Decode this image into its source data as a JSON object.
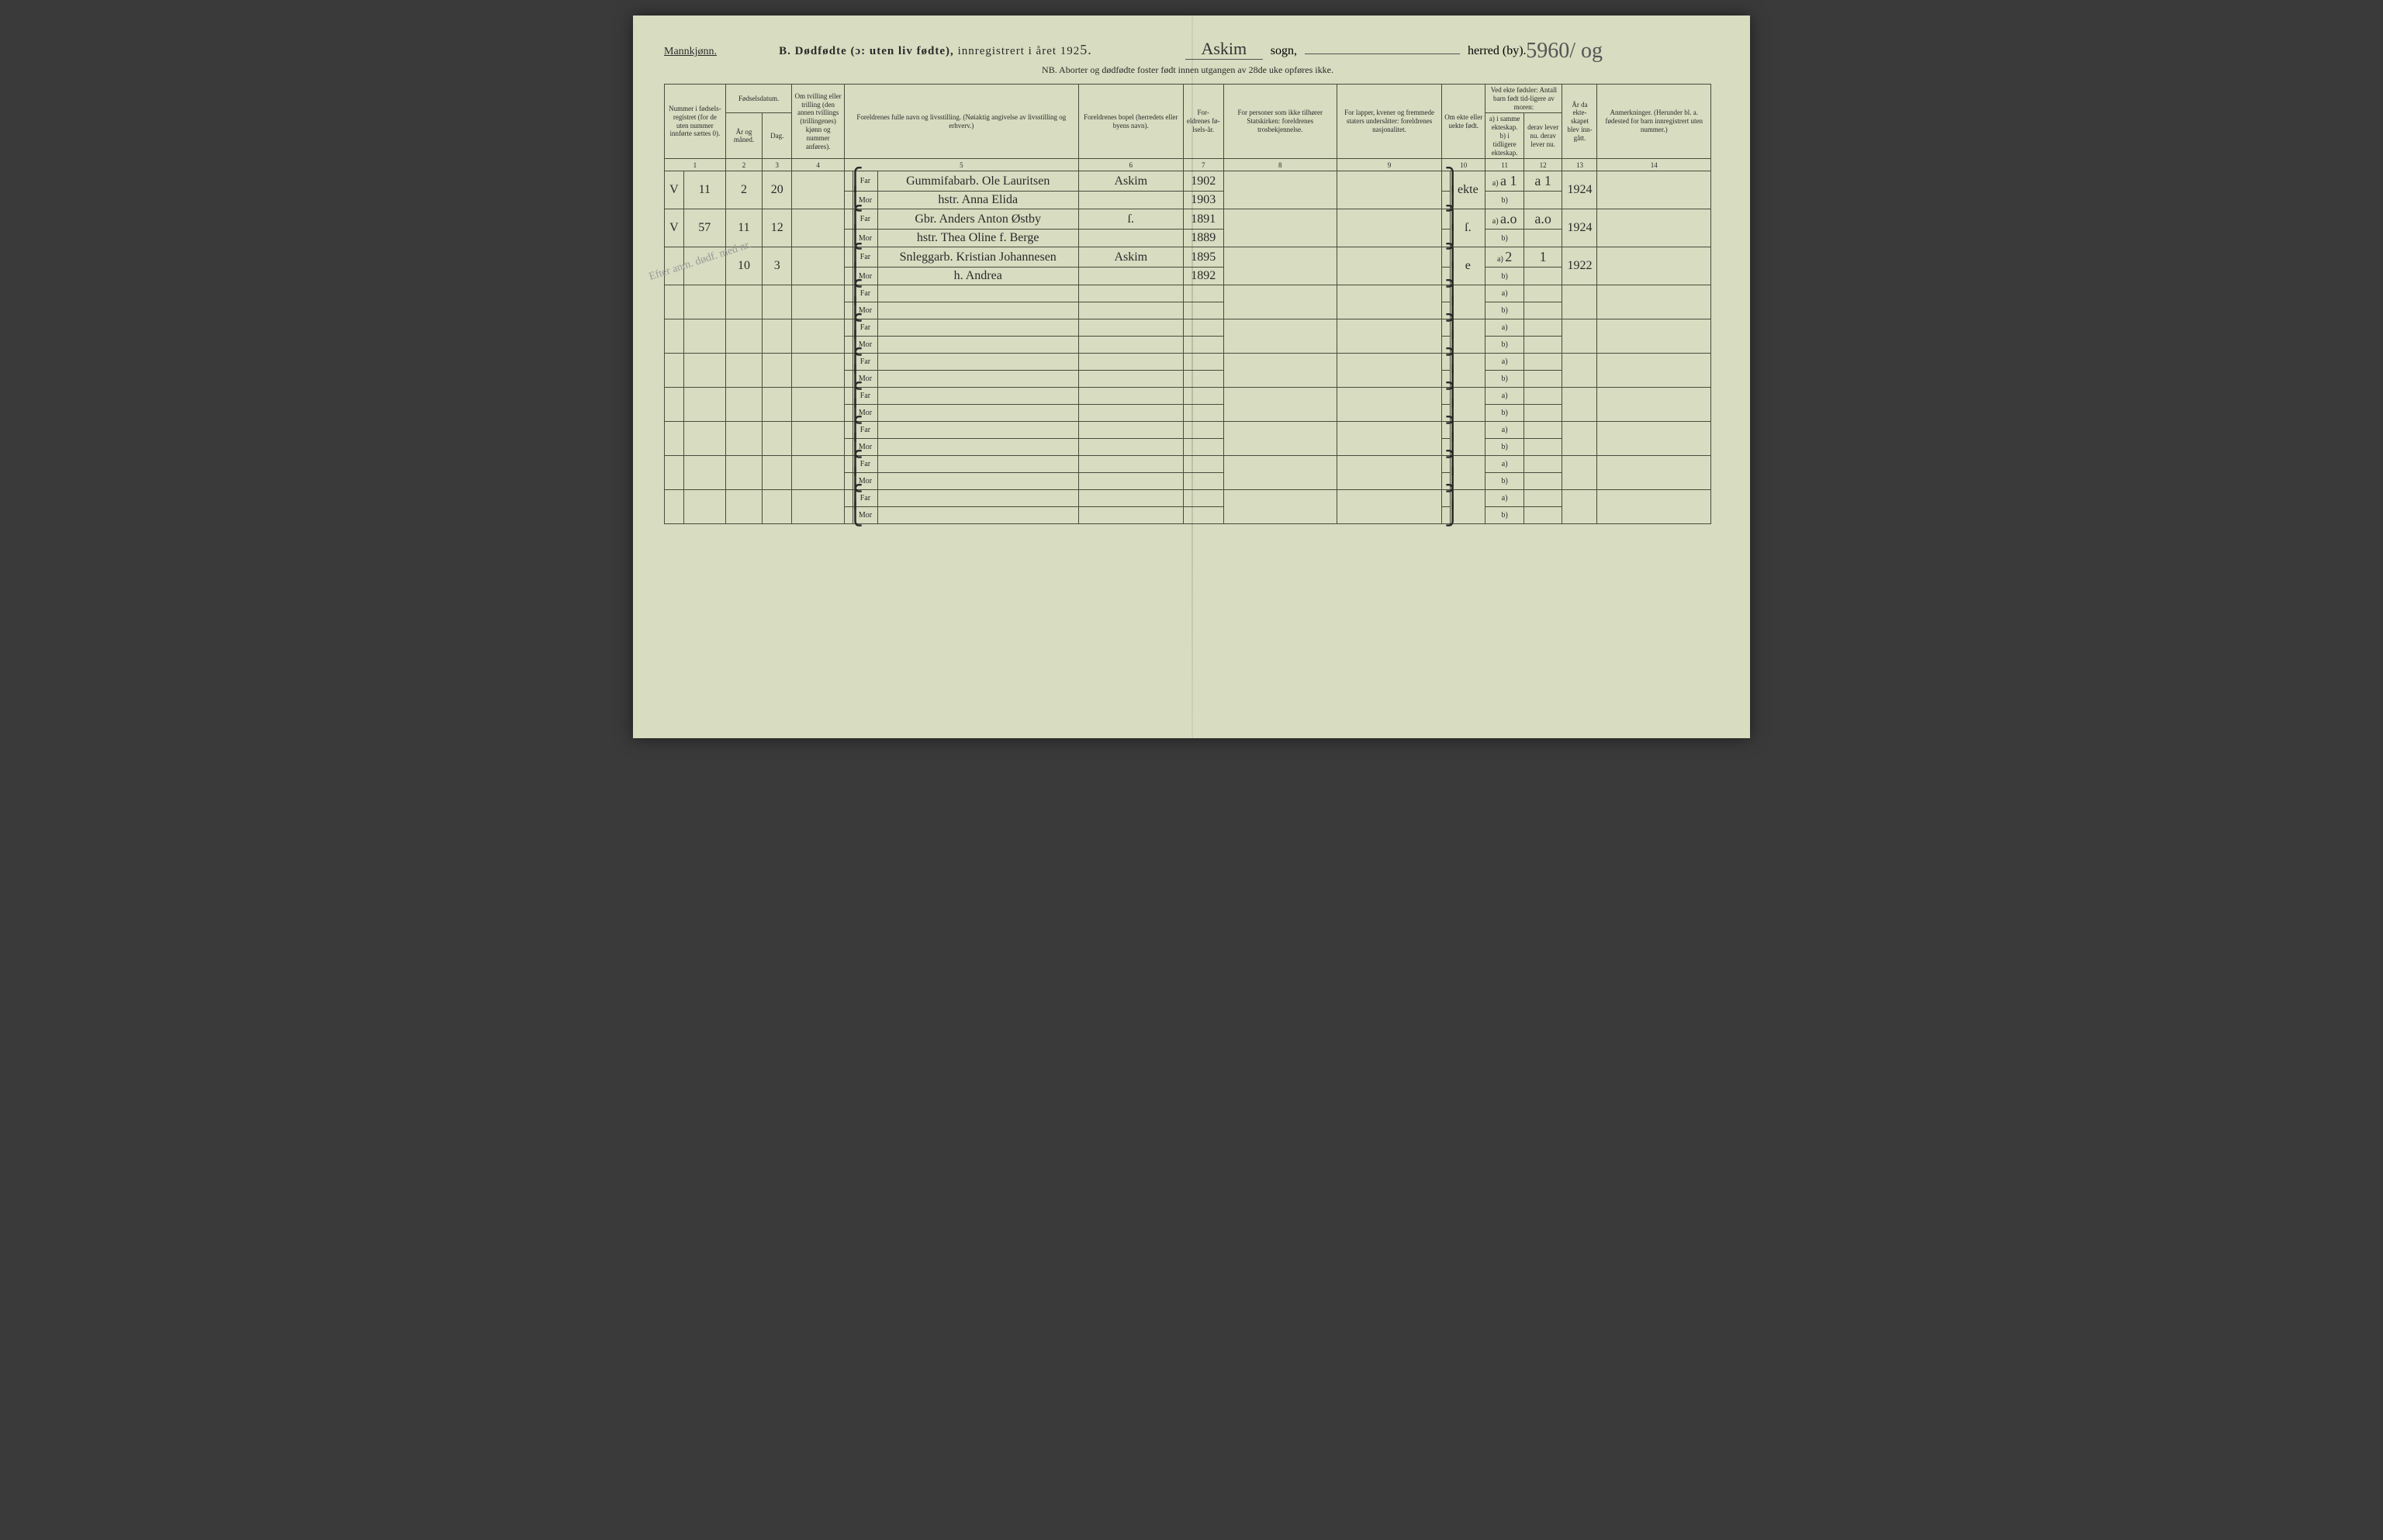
{
  "header": {
    "mannkjonn": "Mannkjønn.",
    "title_prefix": "B.",
    "title_main": "Dødfødte (ɔ: uten liv fødte),",
    "title_rest": "innregistrert i året 192",
    "year_suffix": "5.",
    "sogn_hw": "Askim",
    "sogn_label": "sogn,",
    "page_number": "5960/ og",
    "herred_label": "herred (by).",
    "nb_line": "NB. Aborter og dødfødte foster født innen utgangen av 28de uke opføres ikke."
  },
  "columns": {
    "c1": "Nummer i fødsels-registret (for de uten nummer innførte sættes 0).",
    "c2a": "Fødselsdatum.",
    "c2b": "År og måned.",
    "c3": "Dag.",
    "c4": "Om tvilling eller trilling (den annen tvillings (trillingenes) kjønn og nummer anføres).",
    "c5": "Foreldrenes fulle navn og livsstilling. (Nøiaktig angivelse av livsstilling og erhverv.)",
    "c6": "Foreldrenes bopel (herredets eller byens navn).",
    "c7": "For-eldrenes fø-lsels-år.",
    "c8": "For personer som ikke tilhører Statskirken: foreldrenes trosbekjennelse.",
    "c9": "For lapper, kvener og fremmede staters undersåtter: foreldrenes nasjonalitet.",
    "c10": "Om ekte eller uekte født.",
    "c11a": "Ved ekte fødsler: Antall barn født tid-ligere av moren:",
    "c11b": "a) i samme ekteskap. b) i tidligere ekteskap.",
    "c12": "derav lever nu. derav lever nu.",
    "c13": "År da ekte-skapet blev inn-gått.",
    "c14": "Anmerkninger. (Herunder bl. a. fødested for barn innregistrert uten nummer.)"
  },
  "colnums": [
    "1",
    "2",
    "3",
    "4",
    "5",
    "6",
    "7",
    "8",
    "9",
    "10",
    "11",
    "12",
    "13",
    "14"
  ],
  "far": "Far",
  "mor": "Mor",
  "a_label": "a)",
  "b_label": "b)",
  "brace_top": "⎧",
  "brace_bot": "⎩",
  "brace_r_top": "⎫",
  "brace_r_bot": "⎭",
  "margin_note": "Efter anm. dødf. med nr.",
  "rows": [
    {
      "check": "V",
      "num": "11",
      "month": "2",
      "day": "20",
      "far_name": "Gummifabarb. Ole Lauritsen",
      "mor_name": "hstr. Anna Elida",
      "bopel": "Askim",
      "far_year": "1902",
      "mor_year": "1903",
      "ekte": "ekte",
      "a11": "a 1",
      "a12": "a 1",
      "year_m": "1924"
    },
    {
      "check": "V",
      "num": "57",
      "month": "11",
      "day": "12",
      "far_name": "Gbr. Anders Anton Østby",
      "mor_name": "hstr. Thea Oline f. Berge",
      "bopel": "ſ.",
      "far_year": "1891",
      "mor_year": "1889",
      "ekte": "ſ.",
      "a11": "a.o",
      "a12": "a.o",
      "year_m": "1924"
    },
    {
      "check": "",
      "num": "",
      "month": "10",
      "day": "3",
      "far_name": "Snleggarb. Kristian Johannesen",
      "mor_name": "h. Andrea",
      "bopel": "Askim",
      "far_year": "1895",
      "mor_year": "1892",
      "ekte": "e",
      "a11": "2",
      "a12": "1",
      "year_m": "1922"
    }
  ],
  "empty_count": 7,
  "colors": {
    "paper": "#d8dcc0",
    "ink": "#2a2a2a",
    "rule": "#4a4a3a",
    "faint": "#888888"
  }
}
